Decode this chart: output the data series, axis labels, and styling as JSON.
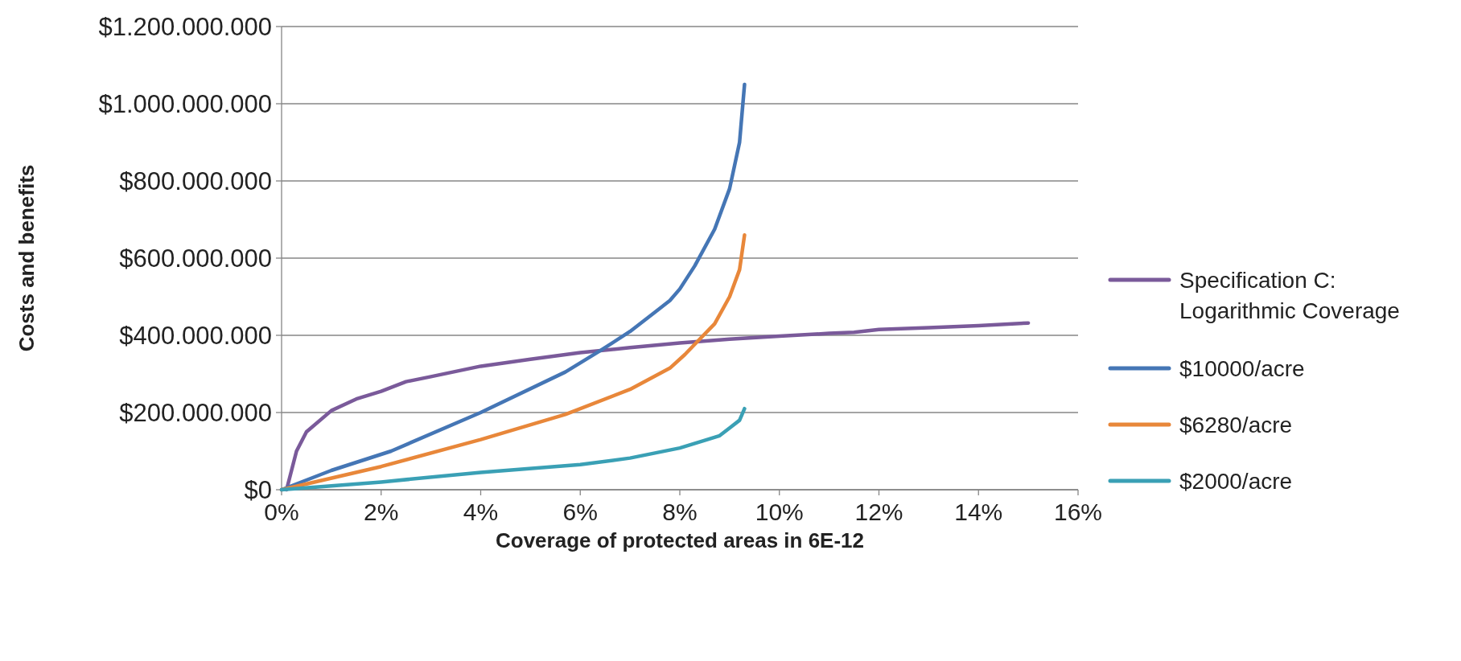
{
  "chart_data": {
    "type": "line",
    "xlabel": "Coverage of protected areas in 6E-12",
    "ylabel": "Costs and benefits",
    "xlim": [
      0,
      16
    ],
    "xticks": [
      {
        "value": 0,
        "label": "0%"
      },
      {
        "value": 2,
        "label": "2%"
      },
      {
        "value": 4,
        "label": "4%"
      },
      {
        "value": 6,
        "label": "6%"
      },
      {
        "value": 8,
        "label": "8%"
      },
      {
        "value": 10,
        "label": "10%"
      },
      {
        "value": 12,
        "label": "12%"
      },
      {
        "value": 14,
        "label": "14%"
      },
      {
        "value": 16,
        "label": "16%"
      }
    ],
    "ylim": [
      0,
      1200000000
    ],
    "yticks": [
      {
        "value": 0,
        "label": "$0"
      },
      {
        "value": 200000000,
        "label": "$200.000.000"
      },
      {
        "value": 400000000,
        "label": "$400.000.000"
      },
      {
        "value": 600000000,
        "label": "$600.000.000"
      },
      {
        "value": 800000000,
        "label": "$800.000.000"
      },
      {
        "value": 1000000000,
        "label": "$1.000.000.000"
      },
      {
        "value": 1200000000,
        "label": "$1.200.000.000"
      }
    ],
    "grid": "y",
    "legend": "right",
    "marker": "none",
    "line_style": "solid",
    "series": [
      {
        "name": "Specification C: Logarithmic Coverage",
        "color": "#7a5a9a",
        "x": [
          0.1,
          0.3,
          0.5,
          1,
          1.5,
          2,
          2.5,
          3,
          4,
          5,
          6,
          7,
          8,
          9,
          10,
          11,
          11.5,
          12,
          13,
          14,
          15
        ],
        "values": [
          0,
          100000000,
          150000000,
          205000000,
          235000000,
          255000000,
          280000000,
          293000000,
          320000000,
          338000000,
          355000000,
          368000000,
          380000000,
          390000000,
          398000000,
          405000000,
          408000000,
          415000000,
          420000000,
          425000000,
          432000000
        ]
      },
      {
        "name": "$10000/acre",
        "color": "#4576b5",
        "x": [
          0,
          1,
          2.2,
          4,
          5.7,
          6.4,
          7,
          7.5,
          7.8,
          8,
          8.3,
          8.7,
          9,
          9.2,
          9.3
        ],
        "values": [
          0,
          50000000,
          100000000,
          200000000,
          305000000,
          360000000,
          410000000,
          460000000,
          490000000,
          520000000,
          580000000,
          675000000,
          780000000,
          900000000,
          1050000000
        ]
      },
      {
        "name": "$6280/acre",
        "color": "#e8873a",
        "x": [
          0,
          2,
          4,
          5.7,
          7,
          7.8,
          8.1,
          8.4,
          8.7,
          9,
          9.2,
          9.3
        ],
        "values": [
          0,
          60000000,
          130000000,
          195000000,
          260000000,
          315000000,
          350000000,
          390000000,
          430000000,
          500000000,
          570000000,
          660000000
        ]
      },
      {
        "name": "$2000/acre",
        "color": "#3aa0b5",
        "x": [
          0,
          2,
          4,
          6,
          7,
          8,
          8.5,
          8.8,
          9,
          9.2,
          9.3
        ],
        "values": [
          0,
          20000000,
          45000000,
          65000000,
          82000000,
          108000000,
          128000000,
          140000000,
          160000000,
          180000000,
          210000000
        ]
      }
    ]
  }
}
